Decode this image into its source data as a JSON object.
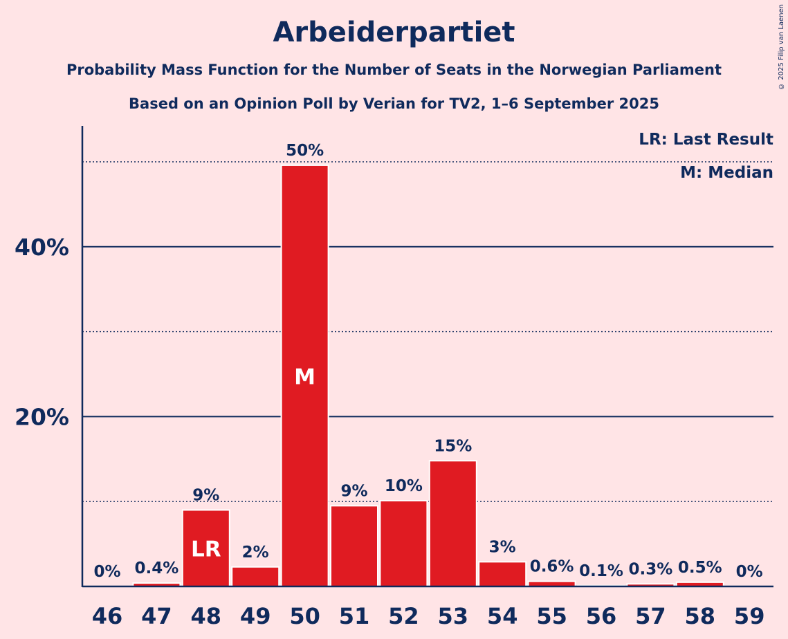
{
  "title": "Arbeiderpartiet",
  "subtitle1": "Probability Mass Function for the Number of Seats in the Norwegian Parliament",
  "subtitle2": "Based on an Opinion Poll by Verian for TV2, 1–6 September 2025",
  "copyright": "© 2025 Filip van Laenen",
  "legend": {
    "last_result": "LR: Last Result",
    "median": "M: Median"
  },
  "colors": {
    "background": "#FFE4E6",
    "bar": "#E01B22",
    "text": "#0F2A5C"
  },
  "chart_data": {
    "type": "bar",
    "categories": [
      "46",
      "47",
      "48",
      "49",
      "50",
      "51",
      "52",
      "53",
      "54",
      "55",
      "56",
      "57",
      "58",
      "59"
    ],
    "values": [
      0,
      0.4,
      9,
      2.3,
      49.6,
      9.5,
      10.1,
      14.8,
      2.9,
      0.6,
      0.1,
      0.3,
      0.5,
      0
    ],
    "data_labels": [
      "0%",
      "0.4%",
      "9%",
      "2%",
      "50%",
      "9%",
      "10%",
      "15%",
      "3%",
      "0.6%",
      "0.1%",
      "0.3%",
      "0.5%",
      "0%"
    ],
    "bar_markers": [
      {
        "category": "48",
        "label": "LR"
      },
      {
        "category": "50",
        "label": "M"
      }
    ],
    "y_ticks": [
      {
        "value": 20,
        "label": "20%"
      },
      {
        "value": 40,
        "label": "40%"
      }
    ],
    "minor_gridlines": [
      10,
      30,
      50
    ],
    "ylim": [
      0,
      54
    ],
    "grid": true,
    "legend_position": "top-right"
  }
}
